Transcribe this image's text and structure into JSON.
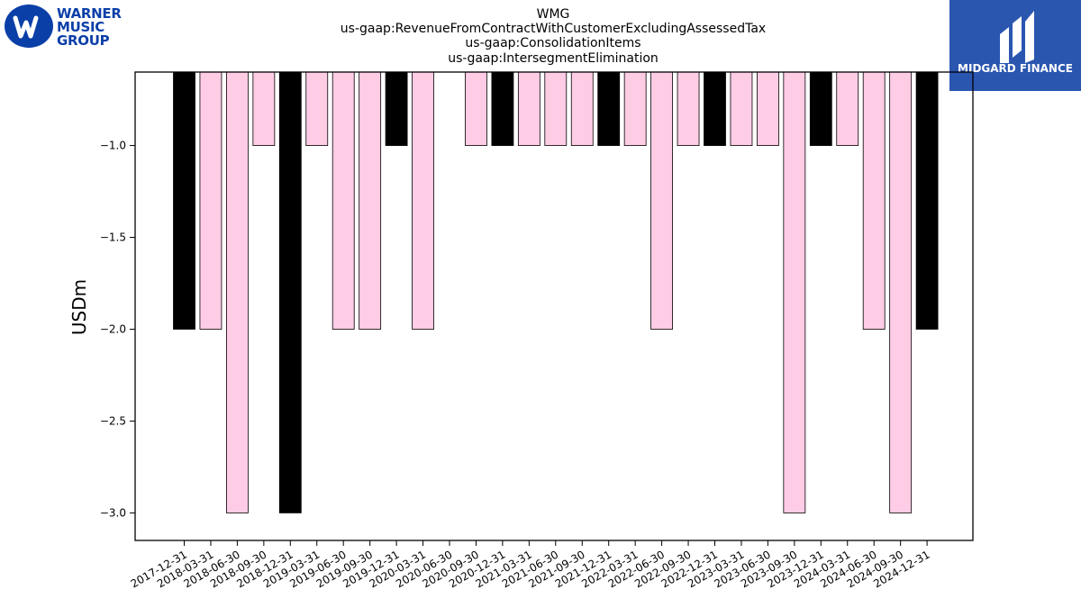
{
  "logo_left": {
    "lines": [
      "WARNER",
      "MUSIC",
      "GROUP"
    ],
    "color": "#0b3fa8"
  },
  "logo_right": {
    "text": "MIDGARD FINANCE",
    "background": "#2a56b0"
  },
  "chart_data": {
    "type": "bar",
    "title_lines": [
      "WMG",
      "us-gaap:RevenueFromContractWithCustomerExcludingAssessedTax",
      "us-gaap:ConsolidationItems",
      "us-gaap:IntersegmentElimination"
    ],
    "xlabel": "",
    "ylabel": "USDm",
    "ylim": [
      -3.15,
      -0.6
    ],
    "yticks": [
      -1.0,
      -1.5,
      -2.0,
      -2.5,
      -3.0
    ],
    "ytick_labels": [
      "−1.0",
      "−1.5",
      "−2.0",
      "−2.5",
      "−3.0"
    ],
    "categories": [
      "2017-12-31",
      "2018-03-31",
      "2018-06-30",
      "2018-09-30",
      "2018-12-31",
      "2019-03-31",
      "2019-06-30",
      "2019-09-30",
      "2019-12-31",
      "2020-03-31",
      "2020-06-30",
      "2020-09-30",
      "2020-12-31",
      "2021-03-31",
      "2021-06-30",
      "2021-09-30",
      "2021-12-31",
      "2022-03-31",
      "2022-06-30",
      "2022-09-30",
      "2022-12-31",
      "2023-03-31",
      "2023-06-30",
      "2023-09-30",
      "2023-12-31",
      "2024-03-31",
      "2024-06-30",
      "2024-09-30",
      "2024-12-31"
    ],
    "values": [
      -2,
      -2,
      -3,
      -1,
      -3,
      -1,
      -2,
      -2,
      -1,
      -2,
      null,
      -1,
      -1,
      -1,
      -1,
      -1,
      -1,
      -1,
      -2,
      -1,
      -1,
      -1,
      -1,
      -3,
      -1,
      -1,
      -2,
      -3,
      -2
    ],
    "bar_colors": [
      "#000000",
      "#ffcce6",
      "#ffcce6",
      "#ffcce6",
      "#000000",
      "#ffcce6",
      "#ffcce6",
      "#ffcce6",
      "#000000",
      "#ffcce6",
      "#ffcce6",
      "#ffcce6",
      "#000000",
      "#ffcce6",
      "#ffcce6",
      "#ffcce6",
      "#000000",
      "#ffcce6",
      "#ffcce6",
      "#ffcce6",
      "#000000",
      "#ffcce6",
      "#ffcce6",
      "#ffcce6",
      "#000000",
      "#ffcce6",
      "#ffcce6",
      "#ffcce6",
      "#000000"
    ],
    "grid": false,
    "legend": "none"
  }
}
